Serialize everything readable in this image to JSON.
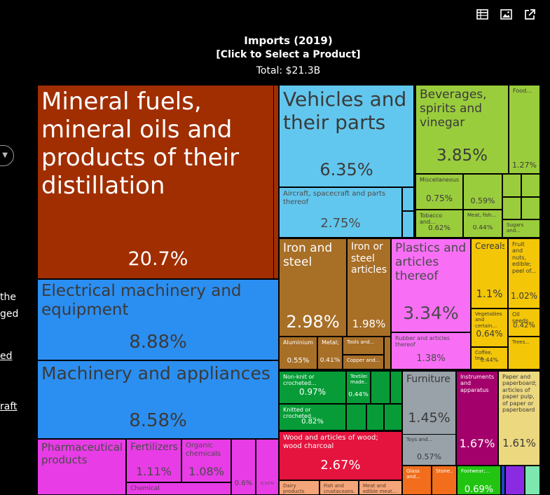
{
  "toolbar": {
    "icons": [
      "table-icon",
      "image-icon",
      "external-link-icon"
    ]
  },
  "header": {
    "title": "Imports (2019)",
    "subtitle": "[Click to Select a Product]",
    "total": "Total: $21.3B"
  },
  "sidebar": {
    "fragments": [
      "the",
      "ged",
      "ed",
      "raft"
    ]
  },
  "chart_data": {
    "type": "treemap",
    "title": "Imports (2019)",
    "total": "Total: $21.3B",
    "unit": "% of total imports",
    "items": [
      {
        "label": "Mineral fuels, mineral oils and products of their distillation",
        "share": 20.7,
        "pct_text": "20.7%"
      },
      {
        "label": "Electrical machinery and equipment",
        "share": 8.88,
        "pct_text": "8.88%"
      },
      {
        "label": "Machinery and appliances",
        "share": 8.58,
        "pct_text": "8.58%"
      },
      {
        "label": "Pharmaceutical products",
        "share": null,
        "pct_text": ""
      },
      {
        "label": "Fertilizers",
        "share": 1.11,
        "pct_text": "1.11%"
      },
      {
        "label": "Organic chemicals",
        "share": 1.08,
        "pct_text": "1.08%"
      },
      {
        "label": "Chemical",
        "share": null,
        "pct_text": ""
      },
      {
        "label": "",
        "share": 0.6,
        "pct_text": "0.6%"
      },
      {
        "label": "",
        "share": 0.55,
        "pct_text": "0.55%"
      },
      {
        "label": "Vehicles and their parts",
        "share": 6.35,
        "pct_text": "6.35%"
      },
      {
        "label": "Aircraft, spacecraft and parts thereof",
        "share": 2.75,
        "pct_text": "2.75%"
      },
      {
        "label": "Beverages, spirits and vinegar",
        "share": 3.85,
        "pct_text": "3.85%"
      },
      {
        "label": "Food...",
        "share": 1.27,
        "pct_text": "1.27%"
      },
      {
        "label": "Miscellaneous...",
        "share": 0.75,
        "pct_text": "0.75%"
      },
      {
        "label": "",
        "share": 0.59,
        "pct_text": "0.59%"
      },
      {
        "label": "Tobacco and...",
        "share": 0.62,
        "pct_text": "0.62%"
      },
      {
        "label": "Meat, fish...",
        "share": 0.44,
        "pct_text": "0.44%"
      },
      {
        "label": "Sugars and...",
        "share": null,
        "pct_text": ""
      },
      {
        "label": "Iron and steel",
        "share": 2.98,
        "pct_text": "2.98%"
      },
      {
        "label": "Iron or steel articles",
        "share": 1.98,
        "pct_text": "1.98%"
      },
      {
        "label": "Aluminium...",
        "share": 0.55,
        "pct_text": "0.55%"
      },
      {
        "label": "Metal;...",
        "share": 0.41,
        "pct_text": "0.41%"
      },
      {
        "label": "Tools and...",
        "share": null,
        "pct_text": ""
      },
      {
        "label": "Copper and...",
        "share": null,
        "pct_text": ""
      },
      {
        "label": "Plastics and articles thereof",
        "share": 3.34,
        "pct_text": "3.34%"
      },
      {
        "label": "Rubber and articles thereof",
        "share": 1.38,
        "pct_text": "1.38%"
      },
      {
        "label": "Cereals",
        "share": 1.1,
        "pct_text": "1.1%"
      },
      {
        "label": "Fruit and nuts, edible; peel of...",
        "share": 1.02,
        "pct_text": "1.02%"
      },
      {
        "label": "Vegetables and certain...",
        "share": 0.64,
        "pct_text": "0.64%"
      },
      {
        "label": "Oil seeds...",
        "share": 0.42,
        "pct_text": "0.42%"
      },
      {
        "label": "Coffee, tea...",
        "share": 0.44,
        "pct_text": "0.44%"
      },
      {
        "label": "Trees...",
        "share": null,
        "pct_text": ""
      },
      {
        "label": "Non-knit or crocheted...",
        "share": 0.97,
        "pct_text": "0.97%"
      },
      {
        "label": "Textiles, made...",
        "share": 0.44,
        "pct_text": "0.44%"
      },
      {
        "label": "Knitted or crocheted...",
        "share": 0.82,
        "pct_text": "0.82%"
      },
      {
        "label": "Furniture",
        "share": 1.45,
        "pct_text": "1.45%"
      },
      {
        "label": "Toys and...",
        "share": 0.57,
        "pct_text": "0.57%"
      },
      {
        "label": "Instruments and apparatus",
        "share": 1.67,
        "pct_text": "1.67%"
      },
      {
        "label": "Paper and paperboard; articles of paper pulp, of paper or paperboard",
        "share": 1.61,
        "pct_text": "1.61%"
      },
      {
        "label": "Wood and articles of wood; wood charcoal",
        "share": 2.67,
        "pct_text": "2.67%"
      },
      {
        "label": "Dairy products and...",
        "share": null,
        "pct_text": ""
      },
      {
        "label": "Fish and crustaceans...",
        "share": null,
        "pct_text": ""
      },
      {
        "label": "Meat and edible meat...",
        "share": null,
        "pct_text": ""
      },
      {
        "label": "Glass and...",
        "share": null,
        "pct_text": ""
      },
      {
        "label": "Stone...",
        "share": null,
        "pct_text": ""
      },
      {
        "label": "Footwear;...",
        "share": 0.69,
        "pct_text": "0.69%"
      }
    ]
  }
}
